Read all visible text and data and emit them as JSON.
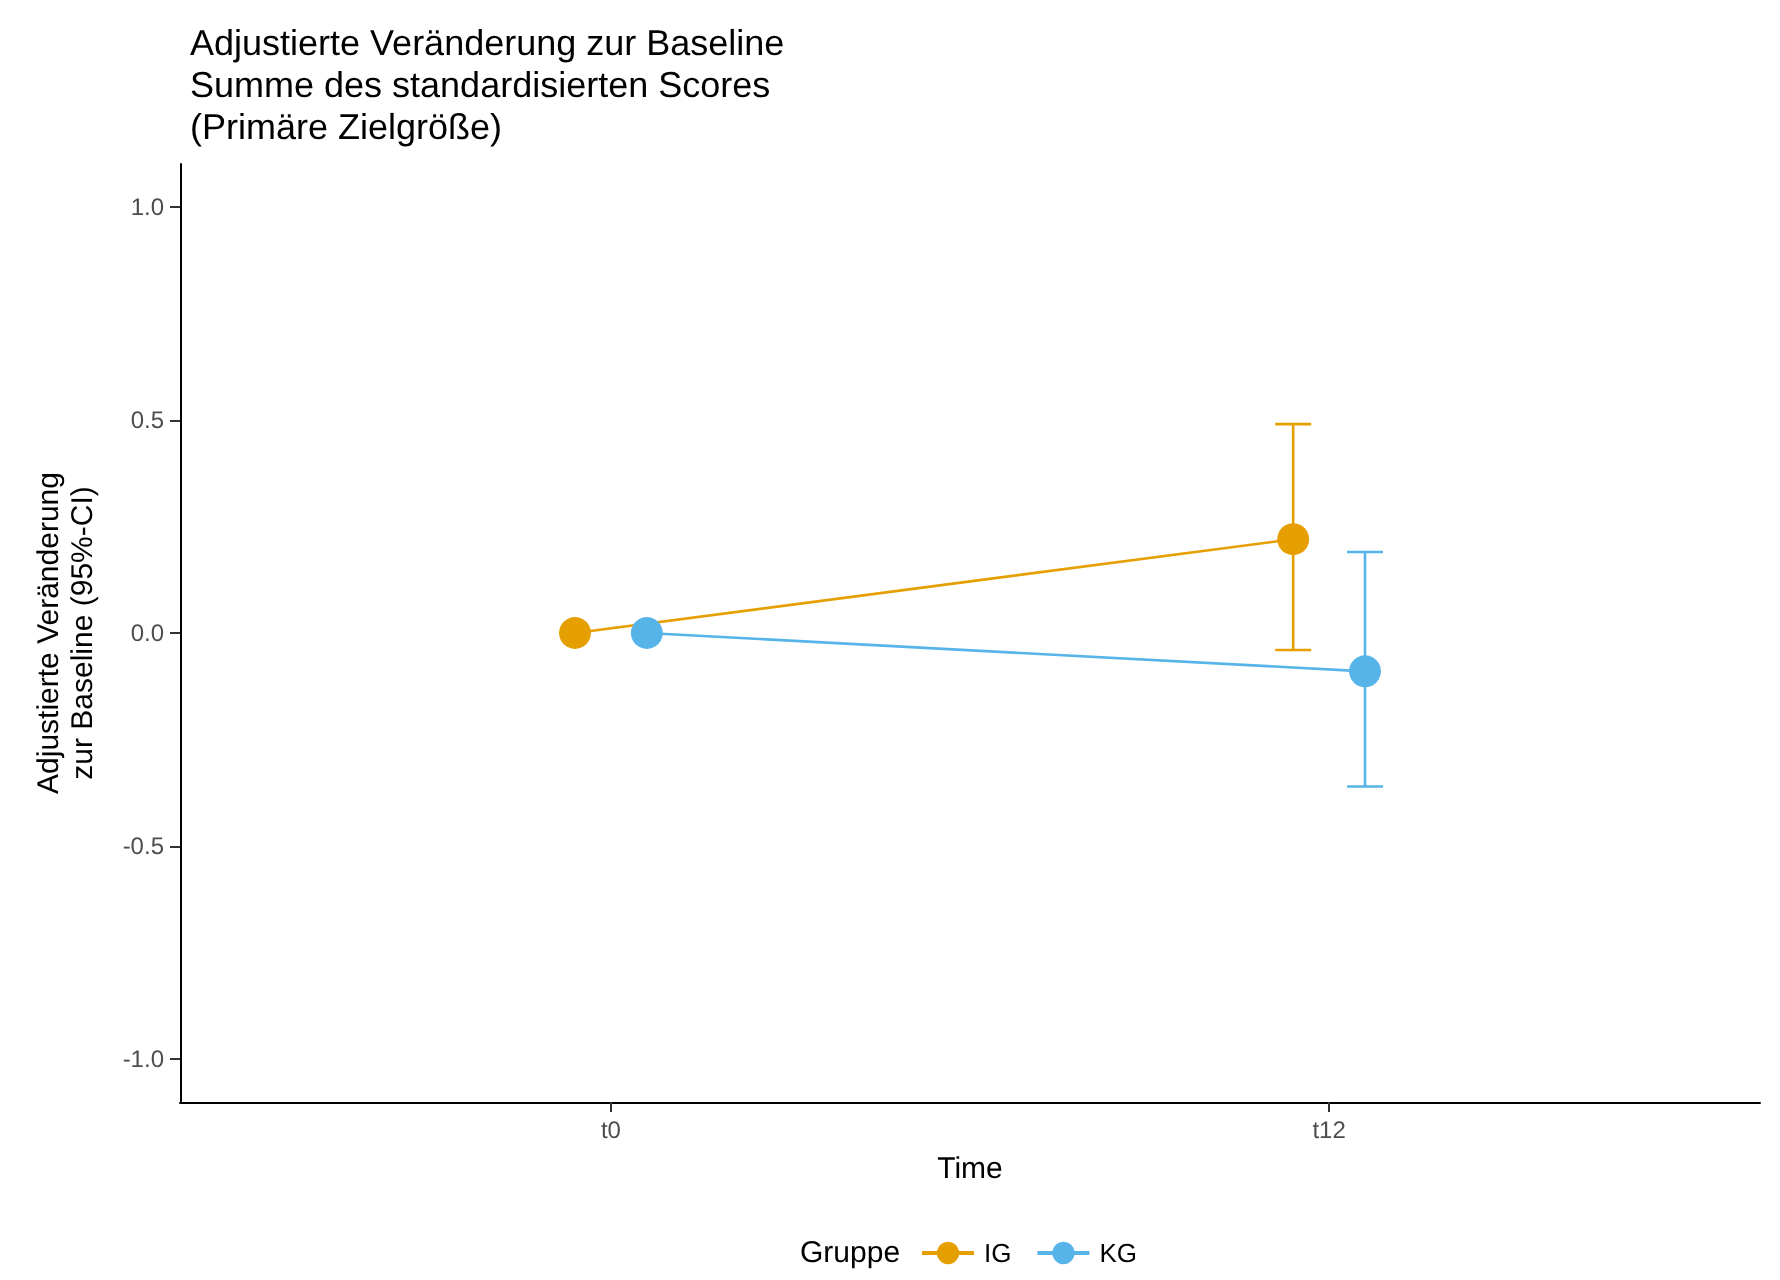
{
  "chart_data": {
    "type": "line",
    "title": "Adjustierte Veränderung zur Baseline\nSumme des standardisierten Scores\n(Primäre Zielgröße)",
    "xlabel": "Time",
    "ylabel": "Adjustierte Veränderung\nzur Baseline (95%-CI)",
    "legend_title": "Gruppe",
    "categories": [
      "t0",
      "t12"
    ],
    "series": [
      {
        "name": "IG",
        "color": "#e69f00",
        "values": [
          0,
          0.22
        ],
        "errors": [
          null,
          [
            -0.04,
            0.49
          ]
        ]
      },
      {
        "name": "KG",
        "color": "#56b4e9",
        "values": [
          0,
          -0.09
        ],
        "errors": [
          null,
          [
            -0.36,
            0.19
          ]
        ]
      }
    ],
    "ylim": [
      -1.1,
      1.1
    ],
    "yticks": [
      {
        "value": -1,
        "label": "-1.0"
      },
      {
        "value": -0.5,
        "label": "-0.5"
      },
      {
        "value": 0,
        "label": "0.0"
      },
      {
        "value": 0.5,
        "label": "0.5"
      },
      {
        "value": 1,
        "label": "1.0"
      }
    ],
    "grid": false,
    "legend": "bottom",
    "marker": "circle",
    "line_style": "solid"
  }
}
